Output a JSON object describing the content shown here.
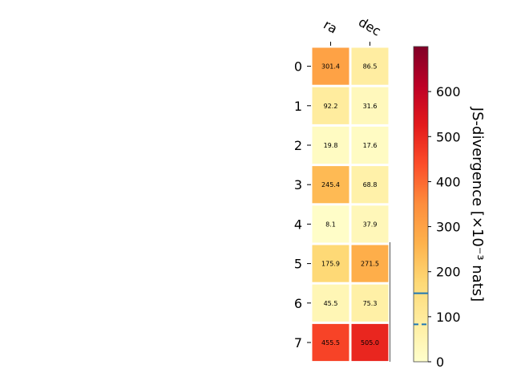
{
  "chart_data": {
    "type": "heatmap",
    "columns": [
      "ra",
      "dec"
    ],
    "rows": [
      "0",
      "1",
      "2",
      "3",
      "4",
      "5",
      "6",
      "7"
    ],
    "values": [
      [
        301.4,
        86.5
      ],
      [
        92.2,
        31.6
      ],
      [
        19.8,
        17.6
      ],
      [
        245.4,
        68.8
      ],
      [
        8.1,
        37.9
      ],
      [
        175.9,
        271.5
      ],
      [
        45.5,
        75.3
      ],
      [
        455.5,
        505.0
      ]
    ],
    "value_labels": [
      [
        "301.4",
        "86.5"
      ],
      [
        "92.2",
        "31.6"
      ],
      [
        "19.8",
        "17.6"
      ],
      [
        "245.4",
        "68.8"
      ],
      [
        "8.1",
        "37.9"
      ],
      [
        "175.9",
        "271.5"
      ],
      [
        "45.5",
        "75.3"
      ],
      [
        "455.5",
        "505.0"
      ]
    ],
    "colorbar": {
      "label": "JS-divergence [×10⁻³ nats]",
      "range": [
        0,
        700
      ],
      "ticks": [
        "0",
        "100",
        "200",
        "300",
        "400",
        "500",
        "600"
      ],
      "tick_values": [
        0,
        100,
        200,
        300,
        400,
        500,
        600
      ],
      "colormap": "YlOrRd",
      "solid_line_value": 152,
      "dashed_line_value": 83,
      "line_color": "#1f77b4"
    }
  }
}
